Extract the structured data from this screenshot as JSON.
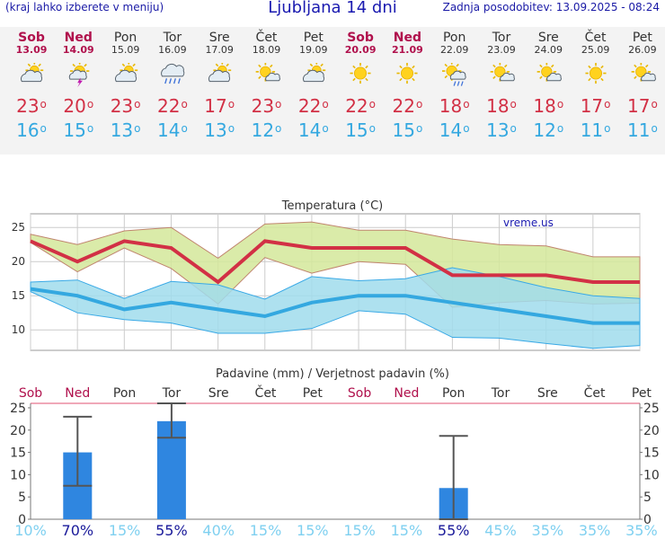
{
  "header": {
    "hint": "(kraj lahko izberete v meniju)",
    "title": "Ljubljana 14 dni",
    "updated": "Zadnja posodobitev: 13.09.2025 - 08:24"
  },
  "days": [
    {
      "name": "Sob",
      "date": "13.09",
      "weekend": true,
      "icon": "partly-cloudy-icon",
      "tmax": "23",
      "tmin": "16"
    },
    {
      "name": "Ned",
      "date": "14.09",
      "weekend": true,
      "icon": "sun-thunderstorm-icon",
      "tmax": "20",
      "tmin": "15"
    },
    {
      "name": "Pon",
      "date": "15.09",
      "weekend": false,
      "icon": "partly-cloudy-icon",
      "tmax": "23",
      "tmin": "13"
    },
    {
      "name": "Tor",
      "date": "16.09",
      "weekend": false,
      "icon": "cloud-rain-icon",
      "tmax": "22",
      "tmin": "14"
    },
    {
      "name": "Sre",
      "date": "17.09",
      "weekend": false,
      "icon": "partly-cloudy-icon",
      "tmax": "17",
      "tmin": "13"
    },
    {
      "name": "Čet",
      "date": "18.09",
      "weekend": false,
      "icon": "sun-small-cloud-icon",
      "tmax": "23",
      "tmin": "12"
    },
    {
      "name": "Pet",
      "date": "19.09",
      "weekend": false,
      "icon": "partly-cloudy-icon",
      "tmax": "22",
      "tmin": "14"
    },
    {
      "name": "Sob",
      "date": "20.09",
      "weekend": true,
      "icon": "sun-icon",
      "tmax": "22",
      "tmin": "15"
    },
    {
      "name": "Ned",
      "date": "21.09",
      "weekend": true,
      "icon": "sun-icon",
      "tmax": "22",
      "tmin": "15"
    },
    {
      "name": "Pon",
      "date": "22.09",
      "weekend": false,
      "icon": "sun-cloud-rain-icon",
      "tmax": "18",
      "tmin": "14"
    },
    {
      "name": "Tor",
      "date": "23.09",
      "weekend": false,
      "icon": "sun-small-cloud-icon",
      "tmax": "18",
      "tmin": "13"
    },
    {
      "name": "Sre",
      "date": "24.09",
      "weekend": false,
      "icon": "sun-small-cloud-icon",
      "tmax": "18",
      "tmin": "12"
    },
    {
      "name": "Čet",
      "date": "25.09",
      "weekend": false,
      "icon": "sun-icon",
      "tmax": "17",
      "tmin": "11"
    },
    {
      "name": "Pet",
      "date": "26.09",
      "weekend": false,
      "icon": "sun-small-cloud-icon",
      "tmax": "17",
      "tmin": "11"
    }
  ],
  "colors": {
    "max": "#d23045",
    "min": "#34a8e0",
    "weekend": "#b0104c",
    "maxBand": "#d4e89a",
    "minBand": "#a0dcec",
    "overlap": "#8ecf9a",
    "bar": "#2f86e0",
    "probLow": "#7fd0f0",
    "probHigh": "#1a1a9a"
  },
  "chart_data": [
    {
      "type": "line",
      "title": "Temperatura (°C)",
      "watermark": "vreme.us",
      "x": [
        "13.09",
        "14.09",
        "15.09",
        "16.09",
        "17.09",
        "18.09",
        "19.09",
        "20.09",
        "21.09",
        "22.09",
        "23.09",
        "24.09",
        "25.09",
        "26.09"
      ],
      "ylim": [
        7,
        27
      ],
      "yticks": [
        10,
        15,
        20,
        25
      ],
      "grid": true,
      "series": [
        {
          "role": "max",
          "values": [
            23,
            20,
            23,
            22,
            17,
            23,
            22,
            22,
            22,
            18,
            18,
            18,
            17,
            17
          ]
        },
        {
          "role": "min",
          "values": [
            16,
            15,
            13,
            14,
            13,
            12,
            14,
            15,
            15,
            14,
            13,
            12,
            11,
            11
          ]
        },
        {
          "role": "max-range-upper",
          "values": [
            24,
            22.5,
            24.5,
            25,
            20.5,
            25.5,
            25.8,
            24.6,
            24.6,
            23.3,
            22.5,
            22.3,
            20.7,
            20.7
          ]
        },
        {
          "role": "max-range-lower",
          "values": [
            22.8,
            18.5,
            22,
            19,
            13.8,
            20.6,
            18.3,
            20,
            19.6,
            13.3,
            14,
            14.3,
            13.8,
            13.9
          ]
        },
        {
          "role": "min-range-upper",
          "values": [
            17,
            17.3,
            14.6,
            17.1,
            16.6,
            14.5,
            17.8,
            17.2,
            17.5,
            19.1,
            17.8,
            16.2,
            15,
            14.6
          ]
        },
        {
          "role": "min-range-lower",
          "values": [
            15.6,
            12.5,
            11.5,
            11,
            9.5,
            9.5,
            10.2,
            12.8,
            12.3,
            8.9,
            8.8,
            8,
            7.3,
            7.7
          ]
        }
      ]
    },
    {
      "type": "bar",
      "title": "Padavine (mm) / Verjetnost padavin (%)",
      "x": [
        "13.09",
        "14.09",
        "15.09",
        "16.09",
        "17.09",
        "18.09",
        "19.09",
        "20.09",
        "21.09",
        "22.09",
        "23.09",
        "24.09",
        "25.09",
        "26.09"
      ],
      "values": [
        0,
        15,
        0,
        22,
        0,
        0,
        0,
        0,
        0,
        7,
        0,
        0,
        0,
        0
      ],
      "error_high": [
        null,
        23,
        null,
        26,
        null,
        null,
        null,
        null,
        null,
        18.7,
        null,
        null,
        null,
        null
      ],
      "error_low": [
        null,
        7.5,
        null,
        18.3,
        null,
        null,
        null,
        null,
        null,
        0,
        null,
        null,
        null,
        null
      ],
      "probability": [
        "10%",
        "70%",
        "15%",
        "55%",
        "40%",
        "15%",
        "15%",
        "15%",
        "15%",
        "55%",
        "45%",
        "35%",
        "35%",
        "35%"
      ],
      "ylim": [
        0,
        26
      ],
      "yticks": [
        0,
        5,
        10,
        15,
        20,
        25
      ]
    }
  ]
}
